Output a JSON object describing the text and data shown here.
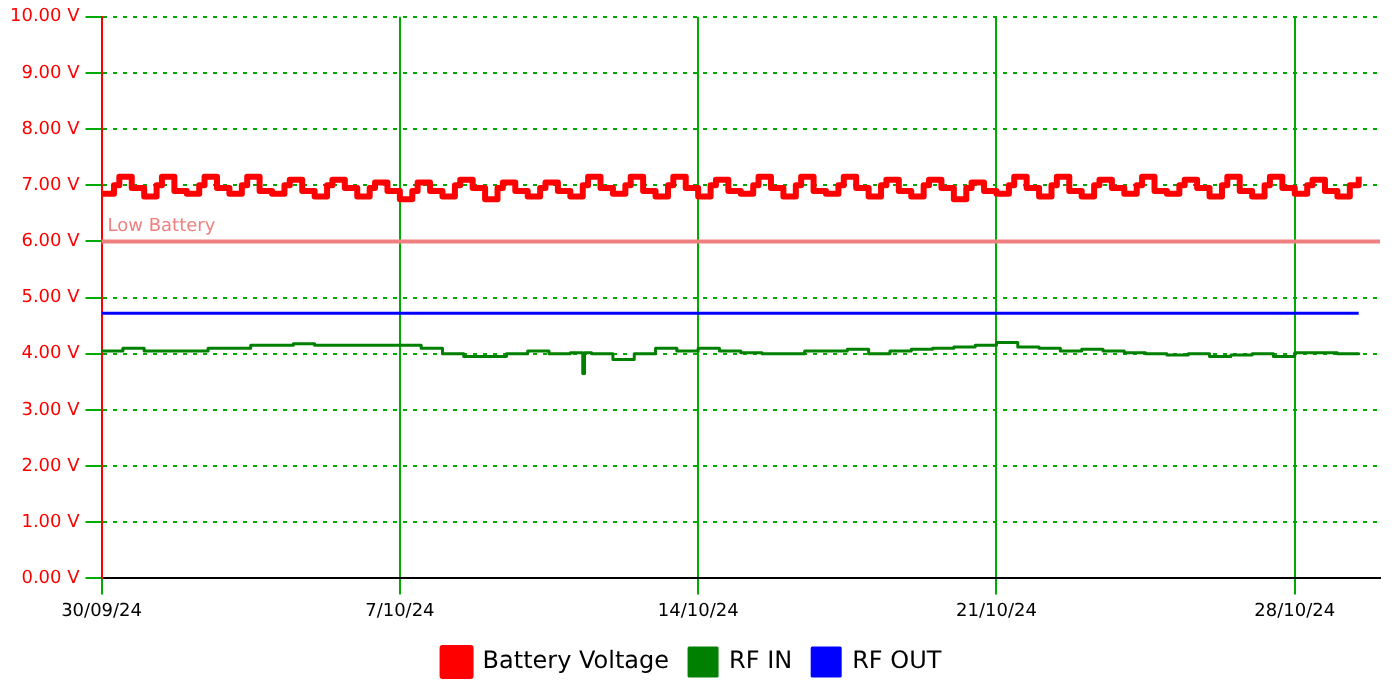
{
  "chart_data": {
    "type": "step",
    "xlim": [
      "--09-30",
      "--10-30"
    ],
    "xticks": [
      {
        "value": "--09-30",
        "label": "30/09/24"
      },
      {
        "value": "--10-07",
        "label": "7/10/24"
      },
      {
        "value": "--10-14",
        "label": "14/10/24"
      },
      {
        "value": "--10-21",
        "label": "21/10/24"
      },
      {
        "value": "--10-28",
        "label": "28/10/24"
      }
    ],
    "ylim": [
      0,
      10
    ],
    "yticks": [
      {
        "value": 0,
        "label": "0.00 V"
      },
      {
        "value": 1,
        "label": "1.00 V"
      },
      {
        "value": 2,
        "label": "2.00 V"
      },
      {
        "value": 3,
        "label": "3.00 V"
      },
      {
        "value": 4,
        "label": "4.00 V"
      },
      {
        "value": 5,
        "label": "5.00 V"
      },
      {
        "value": 6,
        "label": "6.00 V"
      },
      {
        "value": 7,
        "label": "7.00 V"
      },
      {
        "value": 8,
        "label": "8.00 V"
      },
      {
        "value": 9,
        "label": "9.00 V"
      },
      {
        "value": 10,
        "label": "10.00 V"
      }
    ],
    "grid": true,
    "legend": "bottom",
    "ref_lines": [
      {
        "axis": "y",
        "value": 6,
        "label": "Low Battery",
        "color": "#f08080"
      }
    ],
    "series": [
      {
        "name": "Battery Voltage",
        "color": "#ff0000",
        "x": [
          "--09-30T00:00",
          "--09-30T07:00",
          "--09-30T10:00",
          "--09-30T17:00",
          "--10-01T00:00",
          "--10-01T07:00",
          "--10-01T10:00",
          "--10-01T17:00",
          "--10-02T00:00",
          "--10-02T07:00",
          "--10-02T10:00",
          "--10-02T17:00",
          "--10-03T00:00",
          "--10-03T07:00",
          "--10-03T10:00",
          "--10-03T17:00",
          "--10-04T00:00",
          "--10-04T07:00",
          "--10-04T10:00",
          "--10-04T17:00",
          "--10-05T00:00",
          "--10-05T07:00",
          "--10-05T10:00",
          "--10-05T17:00",
          "--10-06T00:00",
          "--10-06T07:00",
          "--10-06T10:00",
          "--10-06T17:00",
          "--10-07T00:00",
          "--10-07T07:00",
          "--10-07T10:00",
          "--10-07T17:00",
          "--10-08T00:00",
          "--10-08T07:00",
          "--10-08T10:00",
          "--10-08T17:00",
          "--10-09T00:00",
          "--10-09T07:00",
          "--10-09T10:00",
          "--10-09T17:00",
          "--10-10T00:00",
          "--10-10T07:00",
          "--10-10T10:00",
          "--10-10T17:00",
          "--10-11T00:00",
          "--10-11T07:00",
          "--10-11T10:00",
          "--10-11T17:00",
          "--10-12T00:00",
          "--10-12T07:00",
          "--10-12T10:00",
          "--10-12T17:00",
          "--10-13T00:00",
          "--10-13T07:00",
          "--10-13T10:00",
          "--10-13T17:00",
          "--10-14T00:00",
          "--10-14T07:00",
          "--10-14T10:00",
          "--10-14T17:00",
          "--10-15T00:00",
          "--10-15T07:00",
          "--10-15T10:00",
          "--10-15T17:00",
          "--10-16T00:00",
          "--10-16T07:00",
          "--10-16T10:00",
          "--10-16T17:00",
          "--10-17T00:00",
          "--10-17T07:00",
          "--10-17T10:00",
          "--10-17T17:00",
          "--10-18T00:00",
          "--10-18T07:00",
          "--10-18T10:00",
          "--10-18T17:00",
          "--10-19T00:00",
          "--10-19T07:00",
          "--10-19T10:00",
          "--10-19T17:00",
          "--10-20T00:00",
          "--10-20T07:00",
          "--10-20T10:00",
          "--10-20T17:00",
          "--10-21T00:00",
          "--10-21T07:00",
          "--10-21T10:00",
          "--10-21T17:00",
          "--10-22T00:00",
          "--10-22T07:00",
          "--10-22T10:00",
          "--10-22T17:00",
          "--10-23T00:00",
          "--10-23T07:00",
          "--10-23T10:00",
          "--10-23T17:00",
          "--10-24T00:00",
          "--10-24T07:00",
          "--10-24T10:00",
          "--10-24T17:00",
          "--10-25T00:00",
          "--10-25T07:00",
          "--10-25T10:00",
          "--10-25T17:00",
          "--10-26T00:00",
          "--10-26T07:00",
          "--10-26T10:00",
          "--10-26T17:00",
          "--10-27T00:00",
          "--10-27T07:00",
          "--10-27T10:00",
          "--10-27T17:00",
          "--10-28T00:00",
          "--10-28T07:00",
          "--10-28T10:00",
          "--10-28T17:00",
          "--10-29T00:00",
          "--10-29T07:00",
          "--10-29T12:00"
        ],
        "values": [
          6.85,
          7.0,
          7.15,
          6.95,
          6.8,
          7.0,
          7.15,
          6.9,
          6.85,
          7.0,
          7.15,
          6.95,
          6.85,
          7.0,
          7.15,
          6.9,
          6.85,
          7.0,
          7.1,
          6.9,
          6.8,
          7.0,
          7.1,
          6.95,
          6.8,
          6.95,
          7.05,
          6.9,
          6.75,
          6.9,
          7.05,
          6.9,
          6.8,
          7.0,
          7.1,
          6.95,
          6.75,
          6.95,
          7.05,
          6.9,
          6.8,
          6.95,
          7.05,
          6.9,
          6.8,
          7.0,
          7.15,
          6.95,
          6.85,
          7.0,
          7.15,
          6.9,
          6.8,
          7.0,
          7.15,
          6.95,
          6.8,
          7.0,
          7.1,
          6.9,
          6.85,
          7.0,
          7.15,
          6.95,
          6.8,
          7.0,
          7.15,
          6.9,
          6.85,
          7.0,
          7.15,
          6.95,
          6.8,
          7.0,
          7.1,
          6.9,
          6.8,
          7.0,
          7.1,
          6.95,
          6.75,
          6.95,
          7.05,
          6.9,
          6.85,
          7.0,
          7.15,
          6.95,
          6.8,
          7.0,
          7.15,
          6.9,
          6.8,
          7.0,
          7.1,
          6.95,
          6.85,
          7.0,
          7.15,
          6.9,
          6.85,
          7.0,
          7.1,
          6.95,
          6.8,
          7.0,
          7.15,
          6.9,
          6.8,
          7.0,
          7.15,
          6.95,
          6.85,
          7.0,
          7.1,
          6.9,
          6.8,
          7.0,
          7.15
        ]
      },
      {
        "name": "RF IN",
        "color": "#008000",
        "x": [
          "--09-30T00:00",
          "--09-30T12:00",
          "--10-01T00:00",
          "--10-01T12:00",
          "--10-02T00:00",
          "--10-02T12:00",
          "--10-03T00:00",
          "--10-03T12:00",
          "--10-04T00:00",
          "--10-04T12:00",
          "--10-05T00:00",
          "--10-05T12:00",
          "--10-06T00:00",
          "--10-06T12:00",
          "--10-07T00:00",
          "--10-07T12:00",
          "--10-08T00:00",
          "--10-08T12:00",
          "--10-09T00:00",
          "--10-09T12:00",
          "--10-10T00:00",
          "--10-10T12:00",
          "--10-11T00:00",
          "--10-11T07:00",
          "--10-11T08:00",
          "--10-11T12:00",
          "--10-12T00:00",
          "--10-12T12:00",
          "--10-13T00:00",
          "--10-13T12:00",
          "--10-14T00:00",
          "--10-14T12:00",
          "--10-15T00:00",
          "--10-15T12:00",
          "--10-16T00:00",
          "--10-16T12:00",
          "--10-17T00:00",
          "--10-17T12:00",
          "--10-18T00:00",
          "--10-18T12:00",
          "--10-19T00:00",
          "--10-19T12:00",
          "--10-20T00:00",
          "--10-20T12:00",
          "--10-21T00:00",
          "--10-21T12:00",
          "--10-22T00:00",
          "--10-22T12:00",
          "--10-23T00:00",
          "--10-23T12:00",
          "--10-24T00:00",
          "--10-24T12:00",
          "--10-25T00:00",
          "--10-25T12:00",
          "--10-26T00:00",
          "--10-26T12:00",
          "--10-27T00:00",
          "--10-27T12:00",
          "--10-28T00:00",
          "--10-28T12:00",
          "--10-29T00:00",
          "--10-29T12:00"
        ],
        "values": [
          4.05,
          4.1,
          4.05,
          4.05,
          4.05,
          4.1,
          4.1,
          4.15,
          4.15,
          4.18,
          4.15,
          4.15,
          4.15,
          4.15,
          4.15,
          4.1,
          4.0,
          3.95,
          3.95,
          4.0,
          4.05,
          4.0,
          4.02,
          3.65,
          4.02,
          4.0,
          3.9,
          4.0,
          4.1,
          4.05,
          4.1,
          4.05,
          4.02,
          4.0,
          4.0,
          4.05,
          4.05,
          4.08,
          4.0,
          4.05,
          4.08,
          4.1,
          4.12,
          4.15,
          4.2,
          4.12,
          4.1,
          4.05,
          4.08,
          4.05,
          4.02,
          4.0,
          3.98,
          4.0,
          3.95,
          3.98,
          4.0,
          3.95,
          4.02,
          4.02,
          4.0,
          3.98
        ]
      },
      {
        "name": "RF OUT",
        "color": "#0000ff",
        "x": [
          "--09-30T00:00",
          "--10-29T12:00"
        ],
        "values": [
          4.72,
          4.72
        ]
      }
    ]
  }
}
